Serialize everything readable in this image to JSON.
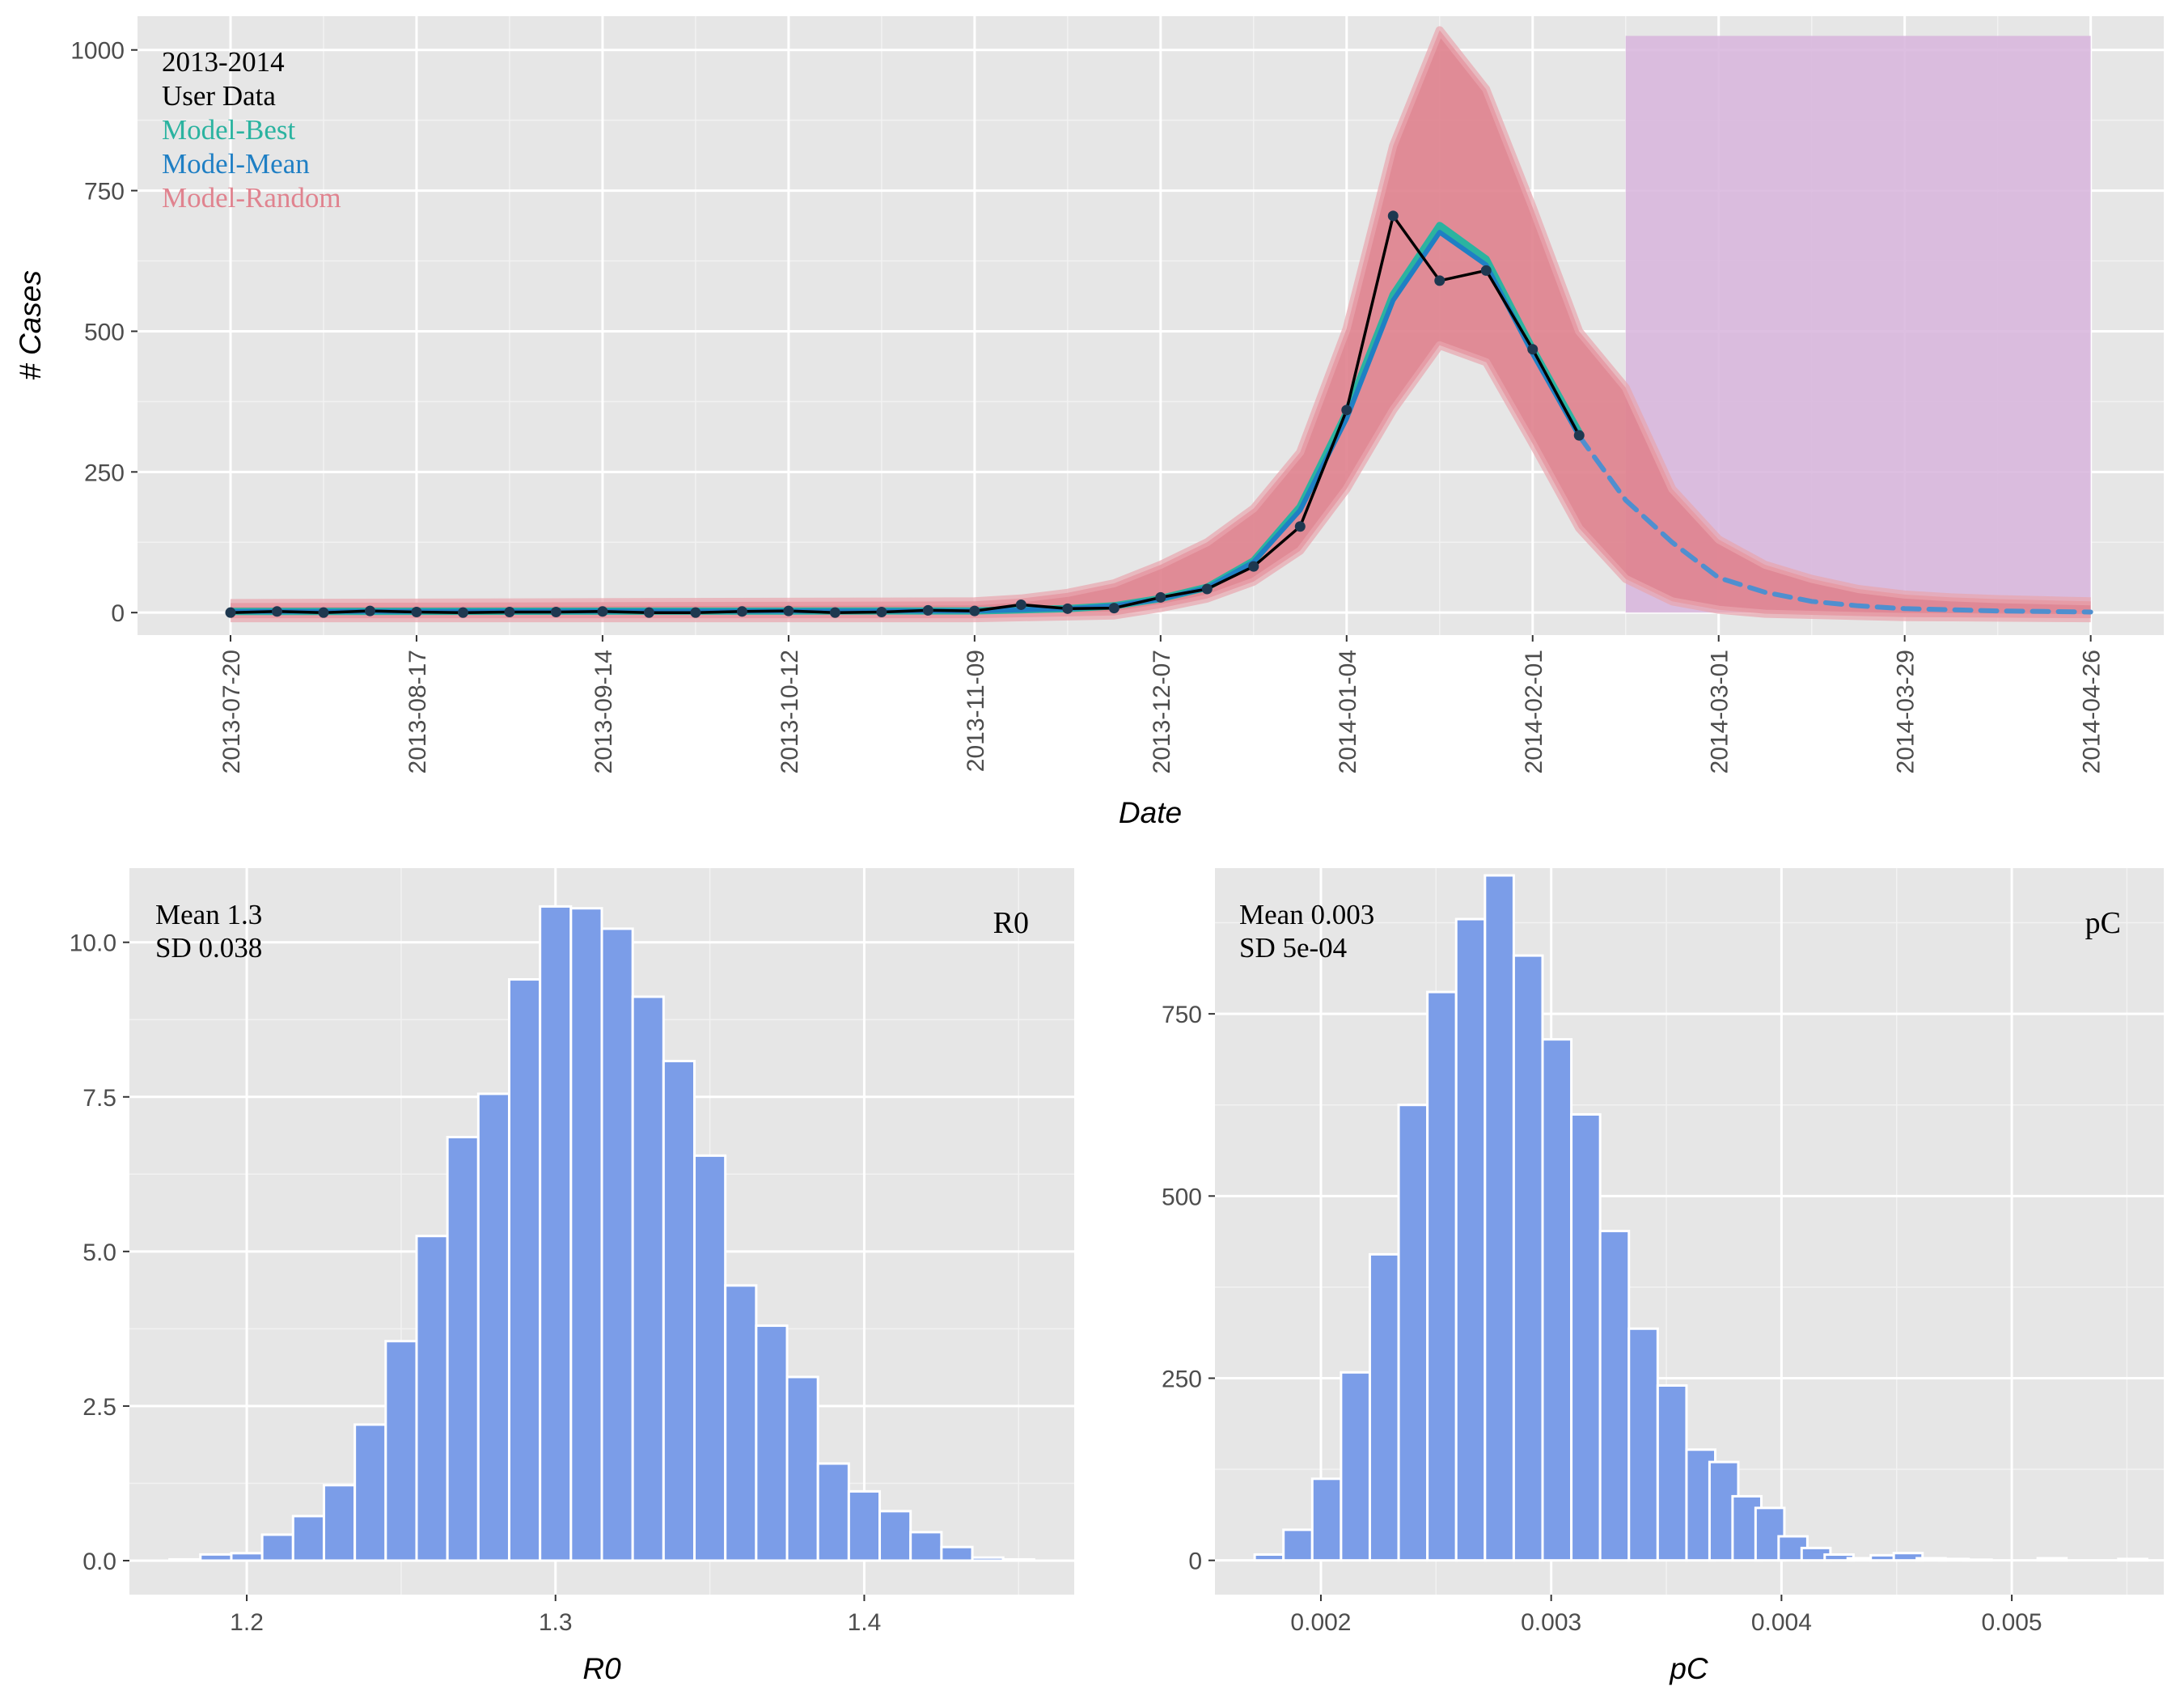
{
  "chart_data": [
    {
      "type": "line",
      "xlabel": "Date",
      "ylabel": "# Cases",
      "ylim": [
        -40,
        1060
      ],
      "yticks": [
        0,
        250,
        500,
        750,
        1000
      ],
      "x_range": [
        "2013-07-06",
        "2014-05-07"
      ],
      "xticks": [
        "2013-07-20",
        "2013-08-17",
        "2013-09-14",
        "2013-10-12",
        "2013-11-09",
        "2013-12-07",
        "2014-01-04",
        "2014-02-01",
        "2014-03-01",
        "2014-03-29",
        "2014-04-26"
      ],
      "legend_placement": "top-left",
      "legend": [
        {
          "label": "2013-2014",
          "color": "#000000"
        },
        {
          "label": "User Data",
          "color": "#000000"
        },
        {
          "label": "Model-Best",
          "color": "#2bb3a0"
        },
        {
          "label": "Model-Mean",
          "color": "#1f7fc4"
        },
        {
          "label": "Model-Random",
          "color": "#e0838f"
        }
      ],
      "forecast_region": {
        "x_start": "2014-02-15",
        "x_end": "2014-04-26",
        "y_max": 1025,
        "color": "#d7b4dc"
      },
      "series": [
        {
          "name": "User Data",
          "color": "#000000",
          "points": [
            [
              "2013-07-20",
              0
            ],
            [
              "2013-07-27",
              2
            ],
            [
              "2013-08-03",
              0
            ],
            [
              "2013-08-10",
              3
            ],
            [
              "2013-08-17",
              1
            ],
            [
              "2013-08-24",
              0
            ],
            [
              "2013-08-31",
              1
            ],
            [
              "2013-09-07",
              1
            ],
            [
              "2013-09-14",
              2
            ],
            [
              "2013-09-21",
              0
            ],
            [
              "2013-09-28",
              0
            ],
            [
              "2013-10-05",
              2
            ],
            [
              "2013-10-12",
              3
            ],
            [
              "2013-10-19",
              0
            ],
            [
              "2013-10-26",
              1
            ],
            [
              "2013-11-02",
              4
            ],
            [
              "2013-11-09",
              3
            ],
            [
              "2013-11-16",
              14
            ],
            [
              "2013-11-23",
              7
            ],
            [
              "2013-11-30",
              8
            ],
            [
              "2013-12-07",
              27
            ],
            [
              "2013-12-14",
              42
            ],
            [
              "2013-12-21",
              82
            ],
            [
              "2013-12-28",
              153
            ],
            [
              "2014-01-04",
              360
            ],
            [
              "2014-01-11",
              705
            ],
            [
              "2014-01-18",
              590
            ],
            [
              "2014-01-25",
              608
            ],
            [
              "2014-02-01",
              468
            ],
            [
              "2014-02-08",
              315
            ]
          ]
        },
        {
          "name": "Model-Best",
          "color": "#2bb3a0",
          "points": [
            [
              "2013-07-20",
              2
            ],
            [
              "2013-11-09",
              3
            ],
            [
              "2013-11-16",
              5
            ],
            [
              "2013-11-23",
              7
            ],
            [
              "2013-11-30",
              12
            ],
            [
              "2013-12-07",
              25
            ],
            [
              "2013-12-14",
              45
            ],
            [
              "2013-12-21",
              92
            ],
            [
              "2013-12-28",
              188
            ],
            [
              "2014-01-04",
              355
            ],
            [
              "2014-01-11",
              565
            ],
            [
              "2014-01-18",
              688
            ],
            [
              "2014-01-25",
              628
            ],
            [
              "2014-02-01",
              468
            ],
            [
              "2014-02-08",
              320
            ]
          ]
        },
        {
          "name": "Model-Mean",
          "color": "#1f7fc4",
          "points": [
            [
              "2013-07-20",
              2
            ],
            [
              "2013-11-09",
              3
            ],
            [
              "2013-11-16",
              5
            ],
            [
              "2013-11-23",
              7
            ],
            [
              "2013-11-30",
              12
            ],
            [
              "2013-12-07",
              24
            ],
            [
              "2013-12-14",
              44
            ],
            [
              "2013-12-21",
              90
            ],
            [
              "2013-12-28",
              182
            ],
            [
              "2014-01-04",
              345
            ],
            [
              "2014-01-11",
              555
            ],
            [
              "2014-01-18",
              676
            ],
            [
              "2014-01-25",
              618
            ],
            [
              "2014-02-01",
              460
            ],
            [
              "2014-02-08",
              314
            ]
          ]
        },
        {
          "name": "Model-Mean forecast",
          "color": "#4f8fcf",
          "dashed": true,
          "points": [
            [
              "2014-02-08",
              314
            ],
            [
              "2014-02-15",
              200
            ],
            [
              "2014-02-22",
              125
            ],
            [
              "2014-03-01",
              62
            ],
            [
              "2014-03-08",
              36
            ],
            [
              "2014-03-15",
              20
            ],
            [
              "2014-03-22",
              12
            ],
            [
              "2014-03-29",
              7
            ],
            [
              "2014-04-05",
              5
            ],
            [
              "2014-04-12",
              3
            ],
            [
              "2014-04-19",
              2
            ],
            [
              "2014-04-26",
              1
            ]
          ]
        },
        {
          "name": "Model-Random band",
          "color": "#e0838f",
          "band": true,
          "upper": [
            [
              "2013-07-20",
              17
            ],
            [
              "2013-11-09",
              20
            ],
            [
              "2013-11-16",
              25
            ],
            [
              "2013-11-23",
              35
            ],
            [
              "2013-11-30",
              52
            ],
            [
              "2013-12-07",
              85
            ],
            [
              "2013-12-14",
              125
            ],
            [
              "2013-12-21",
              185
            ],
            [
              "2013-12-28",
              285
            ],
            [
              "2014-01-04",
              505
            ],
            [
              "2014-01-11",
              830
            ],
            [
              "2014-01-18",
              1035
            ],
            [
              "2014-01-25",
              930
            ],
            [
              "2014-02-01",
              720
            ],
            [
              "2014-02-08",
              500
            ],
            [
              "2014-02-15",
              400
            ],
            [
              "2014-02-22",
              220
            ],
            [
              "2014-03-01",
              130
            ],
            [
              "2014-03-08",
              85
            ],
            [
              "2014-03-15",
              60
            ],
            [
              "2014-03-22",
              42
            ],
            [
              "2014-03-29",
              32
            ],
            [
              "2014-04-05",
              27
            ],
            [
              "2014-04-12",
              24
            ],
            [
              "2014-04-19",
              22
            ],
            [
              "2014-04-26",
              20
            ]
          ],
          "lower": [
            [
              "2013-07-20",
              -10
            ],
            [
              "2013-11-09",
              -10
            ],
            [
              "2013-11-30",
              -5
            ],
            [
              "2013-12-07",
              8
            ],
            [
              "2013-12-14",
              25
            ],
            [
              "2013-12-21",
              55
            ],
            [
              "2013-12-28",
              110
            ],
            [
              "2014-01-04",
              220
            ],
            [
              "2014-01-11",
              360
            ],
            [
              "2014-01-18",
              475
            ],
            [
              "2014-01-25",
              445
            ],
            [
              "2014-02-01",
              300
            ],
            [
              "2014-02-08",
              150
            ],
            [
              "2014-02-15",
              60
            ],
            [
              "2014-02-22",
              20
            ],
            [
              "2014-03-01",
              5
            ],
            [
              "2014-03-08",
              -2
            ],
            [
              "2014-03-29",
              -8
            ],
            [
              "2014-04-26",
              -10
            ]
          ]
        }
      ]
    },
    {
      "type": "bar",
      "title": "R0",
      "xlabel": "R0",
      "ylabel": "",
      "xlim": [
        1.162,
        1.468
      ],
      "ylim": [
        -0.55,
        11.2
      ],
      "xticks": [
        1.2,
        1.3,
        1.4
      ],
      "yticks": [
        "0.0",
        "2.5",
        "5.0",
        "7.5",
        "10.0"
      ],
      "annotation": [
        "Mean 1.3",
        "SD 0.038"
      ],
      "color": "#7b9de8",
      "bin_width": 0.01,
      "bin_starts": [
        1.175,
        1.185,
        1.195,
        1.205,
        1.215,
        1.225,
        1.235,
        1.245,
        1.255,
        1.265,
        1.275,
        1.285,
        1.295,
        1.305,
        1.315,
        1.325,
        1.335,
        1.345,
        1.355,
        1.365,
        1.375,
        1.385,
        1.395,
        1.405,
        1.415,
        1.425,
        1.435,
        1.445
      ],
      "values": [
        0.02,
        0.1,
        0.12,
        0.42,
        0.72,
        1.22,
        2.2,
        3.55,
        5.25,
        6.85,
        7.55,
        9.4,
        10.58,
        10.55,
        10.22,
        9.12,
        8.08,
        6.55,
        4.45,
        3.8,
        2.97,
        1.57,
        1.12,
        0.8,
        0.46,
        0.22,
        0.05,
        0.02
      ]
    },
    {
      "type": "bar",
      "title": "pC",
      "xlabel": "pC",
      "ylabel": "",
      "xlim": [
        0.00154,
        0.00566
      ],
      "ylim": [
        -47,
        950
      ],
      "xticks": [
        "0.002",
        "0.003",
        "0.004",
        "0.005"
      ],
      "yticks": [
        "0",
        "250",
        "500",
        "750"
      ],
      "annotation": [
        "Mean 0.003",
        "SD 5e-04"
      ],
      "color": "#7b9de8",
      "bin_width": 0.000125,
      "bin_starts": [
        0.0017125,
        0.0018375,
        0.0019625,
        0.0020875,
        0.0022125,
        0.0023375,
        0.0024625,
        0.0025875,
        0.0027125,
        0.0028375,
        0.0029625,
        0.0030875,
        0.0032125,
        0.0033375,
        0.0034625,
        0.0035875,
        0.0036875,
        0.0037875,
        0.0038875,
        0.0039875,
        0.0040875,
        0.0041875,
        0.0042875,
        0.0043875,
        0.0044875,
        0.0045875,
        0.0046875,
        0.0047875,
        0.0051125,
        0.0054625
      ],
      "values": [
        8,
        42,
        112,
        258,
        420,
        625,
        780,
        880,
        940,
        830,
        715,
        612,
        452,
        318,
        240,
        152,
        135,
        88,
        72,
        33,
        17,
        8,
        3,
        7,
        10,
        3,
        2,
        1,
        3,
        2
      ]
    }
  ]
}
